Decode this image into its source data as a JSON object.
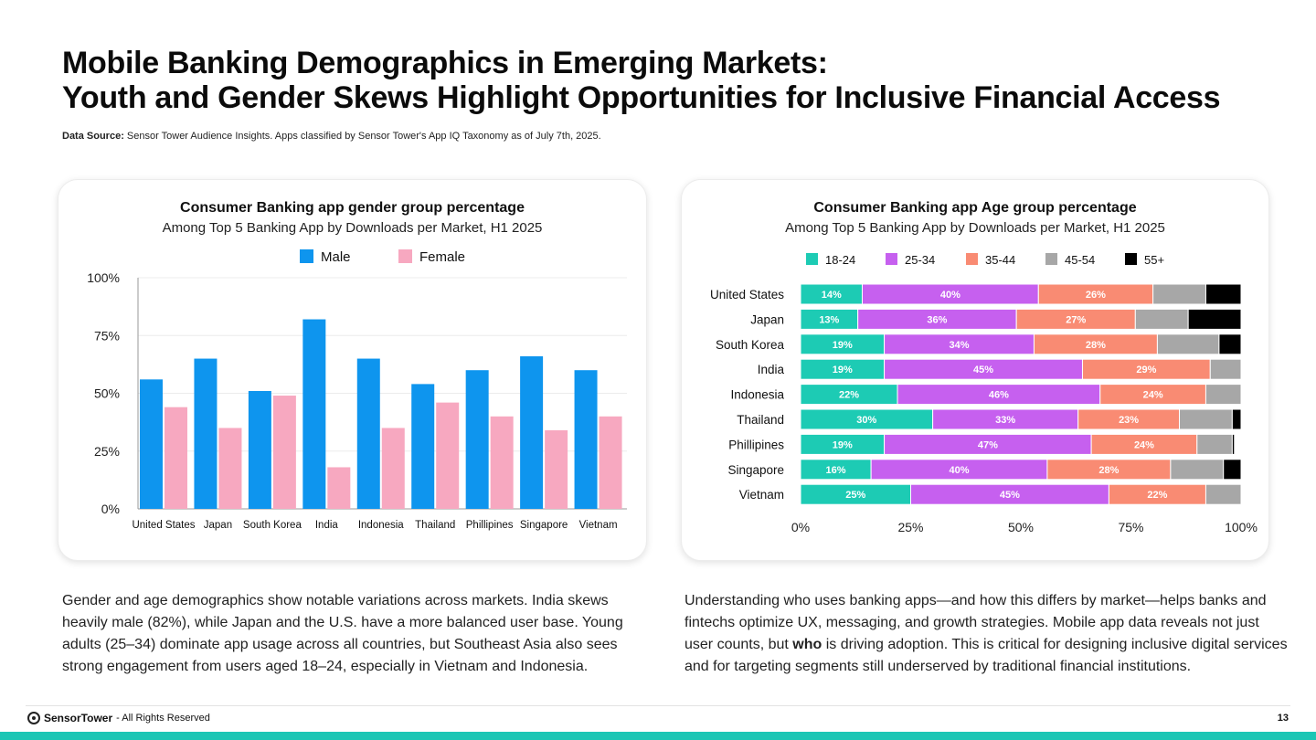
{
  "header": {
    "title_line1": "Mobile Banking Demographics in Emerging Markets:",
    "title_line2": "Youth and Gender Skews Highlight Opportunities for Inclusive Financial Access",
    "source_label": "Data Source:",
    "source_text": "Sensor Tower Audience Insights. Apps classified by Sensor Tower's App IQ Taxonomy as of July 7th, 2025."
  },
  "colors": {
    "male": "#0e95ee",
    "female": "#f7a8c0",
    "age_18_24": "#1dcbb4",
    "age_25_34": "#c660ef",
    "age_35_44": "#f98b73",
    "age_45_54": "#a7a7a7",
    "age_55_plus": "#000000"
  },
  "chart_data": [
    {
      "type": "bar",
      "title": "Consumer Banking app gender group percentage",
      "subtitle": "Among Top 5 Banking App by Downloads  per Market, H1  2025",
      "categories": [
        "United States",
        "Japan",
        "South Korea",
        "India",
        "Indonesia",
        "Thailand",
        "Phillipines",
        "Singapore",
        "Vietnam"
      ],
      "series": [
        {
          "name": "Male",
          "values": [
            56,
            65,
            51,
            82,
            65,
            54,
            60,
            66,
            60
          ]
        },
        {
          "name": "Female",
          "values": [
            44,
            35,
            49,
            18,
            35,
            46,
            40,
            34,
            40
          ]
        }
      ],
      "ylim": [
        0,
        100
      ],
      "yticks": [
        "0%",
        "25%",
        "50%",
        "75%",
        "100%"
      ],
      "legend": "top",
      "grid": true
    },
    {
      "type": "bar",
      "orientation": "horizontal",
      "stacked": true,
      "title": "Consumer Banking app Age group percentage",
      "subtitle": "Among Top 5 Banking App by Downloads  per Market, H1  2025",
      "categories": [
        "United States",
        "Japan",
        "South Korea",
        "India",
        "Indonesia",
        "Thailand",
        "Phillipines",
        "Singapore",
        "Vietnam"
      ],
      "series": [
        {
          "name": "18-24",
          "values": [
            14,
            13,
            19,
            19,
            22,
            30,
            19,
            16,
            25
          ]
        },
        {
          "name": "25-34",
          "values": [
            40,
            36,
            34,
            45,
            46,
            33,
            47,
            40,
            45
          ]
        },
        {
          "name": "35-44",
          "values": [
            26,
            27,
            28,
            29,
            24,
            23,
            24,
            28,
            22
          ]
        },
        {
          "name": "45-54",
          "values": [
            12,
            12,
            14,
            7,
            8,
            12,
            8,
            12,
            8
          ]
        },
        {
          "name": "55+",
          "values": [
            8,
            12,
            5,
            0,
            0,
            2,
            0.5,
            4,
            0
          ]
        }
      ],
      "xlim": [
        0,
        100
      ],
      "xticks": [
        "0%",
        "25%",
        "50%",
        "75%",
        "100%"
      ],
      "legend": "top"
    }
  ],
  "paragraphs": {
    "left": "Gender and age demographics show notable variations across markets. India skews heavily male (82%), while Japan and the U.S. have a more balanced user base. Young adults (25–34) dominate app usage across all countries, but Southeast Asia also sees strong engagement from users aged 18–24, especially in Vietnam and Indonesia.",
    "right_before": "Understanding who uses banking apps—and how this differs by market—helps banks and fintechs optimize UX, messaging, and growth strategies. Mobile app data reveals not just user counts, but ",
    "right_bold": "who",
    "right_after": " is driving adoption. This is critical for designing inclusive digital services and for targeting segments still underserved by traditional financial institutions."
  },
  "footer": {
    "brand": "SensorTower",
    "rights": "- All Rights Reserved",
    "page": "13"
  }
}
